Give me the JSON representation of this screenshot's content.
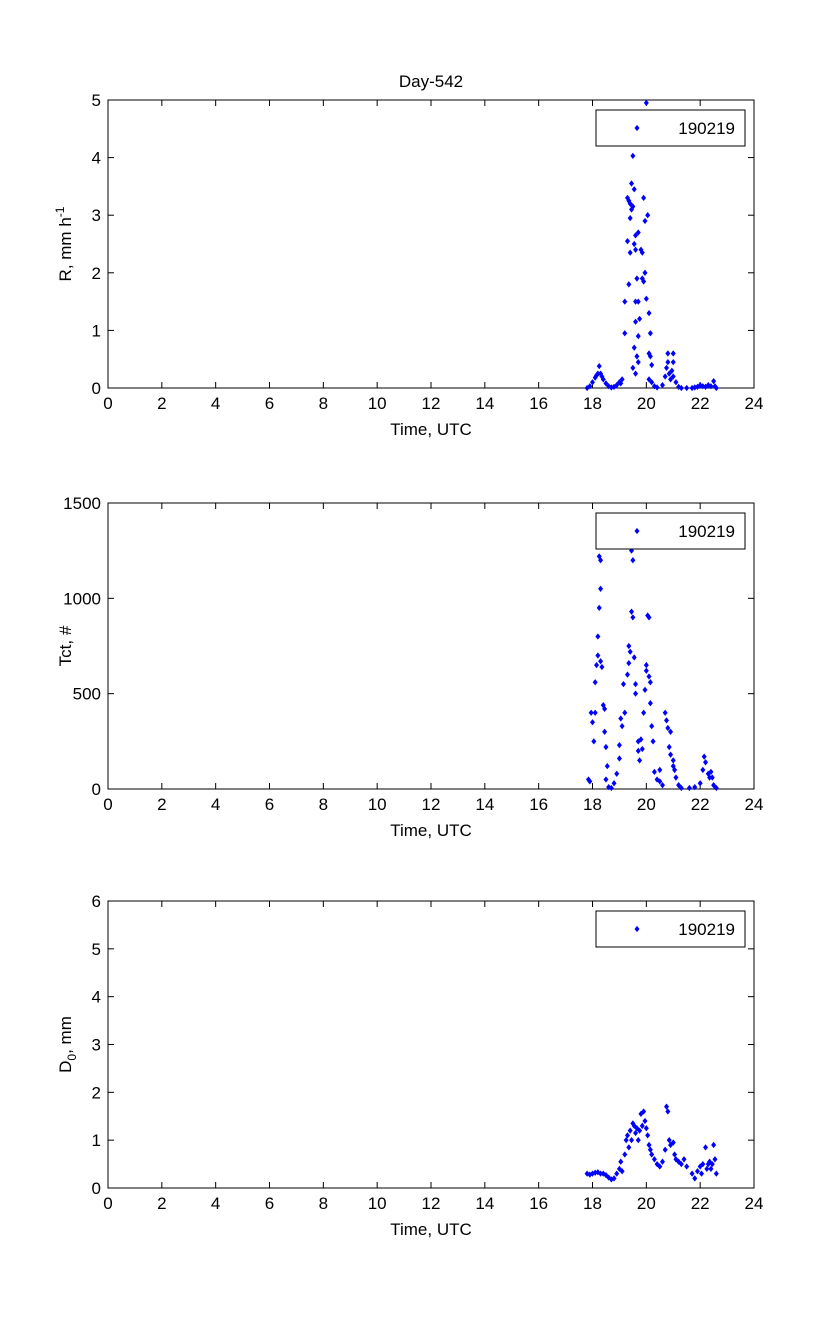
{
  "figure_title": "Day-542",
  "marker_color": "#0000ff",
  "chart_data": [
    {
      "type": "scatter",
      "title": "Day-542",
      "xlabel": "Time, UTC",
      "ylabel": {
        "base": "R, mm h",
        "sup": "-1",
        "sub": "",
        "rest": ""
      },
      "xlim": [
        0,
        24
      ],
      "ylim": [
        0,
        5
      ],
      "xticks": [
        0,
        2,
        4,
        6,
        8,
        10,
        12,
        14,
        16,
        18,
        20,
        22,
        24
      ],
      "yticks": [
        0,
        1,
        2,
        3,
        4,
        5
      ],
      "legend": {
        "label": "190219",
        "placement": "top-right"
      },
      "grid": false,
      "points": [
        [
          17.8,
          0
        ],
        [
          17.9,
          0.03
        ],
        [
          18.0,
          0.1
        ],
        [
          18.1,
          0.18
        ],
        [
          18.15,
          0.22
        ],
        [
          18.2,
          0.25
        ],
        [
          18.25,
          0.38
        ],
        [
          18.3,
          0.25
        ],
        [
          18.35,
          0.2
        ],
        [
          18.4,
          0.15
        ],
        [
          18.5,
          0.08
        ],
        [
          18.6,
          0.03
        ],
        [
          18.7,
          0.01
        ],
        [
          18.8,
          0.02
        ],
        [
          18.9,
          0.05
        ],
        [
          19.0,
          0.1
        ],
        [
          19.05,
          0.08
        ],
        [
          19.1,
          0.15
        ],
        [
          19.2,
          1.5
        ],
        [
          19.2,
          0.95
        ],
        [
          19.3,
          3.3
        ],
        [
          19.35,
          3.25
        ],
        [
          19.3,
          2.55
        ],
        [
          19.4,
          3.2
        ],
        [
          19.45,
          3.1
        ],
        [
          19.5,
          4.03
        ],
        [
          19.45,
          3.55
        ],
        [
          19.55,
          3.45
        ],
        [
          19.6,
          2.4
        ],
        [
          19.55,
          2.5
        ],
        [
          19.4,
          2.35
        ],
        [
          19.35,
          1.8
        ],
        [
          19.4,
          2.95
        ],
        [
          19.5,
          3.15
        ],
        [
          19.6,
          2.65
        ],
        [
          19.7,
          2.7
        ],
        [
          19.65,
          1.9
        ],
        [
          19.6,
          1.5
        ],
        [
          19.7,
          1.5
        ],
        [
          19.75,
          1.2
        ],
        [
          19.6,
          1.15
        ],
        [
          19.7,
          0.9
        ],
        [
          19.65,
          0.55
        ],
        [
          19.7,
          0.45
        ],
        [
          19.55,
          0.7
        ],
        [
          19.5,
          0.35
        ],
        [
          19.6,
          0.25
        ],
        [
          19.8,
          2.4
        ],
        [
          19.85,
          2.35
        ],
        [
          19.9,
          3.3
        ],
        [
          19.95,
          2.9
        ],
        [
          19.85,
          1.9
        ],
        [
          19.9,
          1.85
        ],
        [
          19.95,
          2.0
        ],
        [
          20.0,
          1.55
        ],
        [
          20.05,
          3.0
        ],
        [
          20.1,
          1.3
        ],
        [
          20.15,
          0.95
        ],
        [
          20.0,
          4.95
        ],
        [
          20.1,
          0.6
        ],
        [
          20.15,
          0.55
        ],
        [
          20.2,
          0.4
        ],
        [
          20.1,
          0.15
        ],
        [
          20.2,
          0.1
        ],
        [
          20.3,
          0.03
        ],
        [
          20.4,
          0.01
        ],
        [
          20.6,
          0.05
        ],
        [
          20.7,
          0.2
        ],
        [
          20.75,
          0.35
        ],
        [
          20.8,
          0.45
        ],
        [
          20.8,
          0.6
        ],
        [
          20.85,
          0.25
        ],
        [
          20.9,
          0.15
        ],
        [
          21.0,
          0.45
        ],
        [
          21.0,
          0.6
        ],
        [
          20.95,
          0.3
        ],
        [
          21.0,
          0.2
        ],
        [
          21.1,
          0.1
        ],
        [
          21.2,
          0.02
        ],
        [
          21.3,
          0.0
        ],
        [
          21.5,
          0
        ],
        [
          21.7,
          0
        ],
        [
          21.8,
          0.01
        ],
        [
          21.9,
          0.02
        ],
        [
          22.0,
          0.05
        ],
        [
          22.1,
          0.03
        ],
        [
          22.2,
          0.02
        ],
        [
          22.3,
          0.05
        ],
        [
          22.4,
          0.03
        ],
        [
          22.5,
          0.12
        ],
        [
          22.55,
          0.03
        ],
        [
          22.6,
          0
        ]
      ]
    },
    {
      "type": "scatter",
      "xlabel": "Time, UTC",
      "ylabel": {
        "base": "Tct, #",
        "sup": "",
        "sub": "",
        "rest": ""
      },
      "xlim": [
        0,
        24
      ],
      "ylim": [
        0,
        1500
      ],
      "xticks": [
        0,
        2,
        4,
        6,
        8,
        10,
        12,
        14,
        16,
        18,
        20,
        22,
        24
      ],
      "yticks": [
        0,
        500,
        1000,
        1500
      ],
      "legend": {
        "label": "190219",
        "placement": "top-right"
      },
      "grid": false,
      "points": [
        [
          17.85,
          50
        ],
        [
          17.9,
          40
        ],
        [
          17.95,
          400
        ],
        [
          18.0,
          350
        ],
        [
          18.05,
          250
        ],
        [
          18.1,
          400
        ],
        [
          18.1,
          560
        ],
        [
          18.15,
          650
        ],
        [
          18.2,
          700
        ],
        [
          18.2,
          800
        ],
        [
          18.25,
          950
        ],
        [
          18.3,
          1050
        ],
        [
          18.25,
          1220
        ],
        [
          18.3,
          1200
        ],
        [
          18.3,
          670
        ],
        [
          18.35,
          640
        ],
        [
          18.4,
          440
        ],
        [
          18.45,
          420
        ],
        [
          18.45,
          300
        ],
        [
          18.5,
          220
        ],
        [
          18.55,
          120
        ],
        [
          18.5,
          50
        ],
        [
          18.6,
          10
        ],
        [
          18.7,
          5
        ],
        [
          18.8,
          30
        ],
        [
          18.9,
          80
        ],
        [
          19.0,
          160
        ],
        [
          19.0,
          230
        ],
        [
          19.05,
          370
        ],
        [
          19.1,
          330
        ],
        [
          19.2,
          400
        ],
        [
          19.15,
          550
        ],
        [
          19.3,
          600
        ],
        [
          19.35,
          750
        ],
        [
          19.35,
          660
        ],
        [
          19.4,
          720
        ],
        [
          19.45,
          930
        ],
        [
          19.5,
          900
        ],
        [
          19.5,
          1200
        ],
        [
          19.45,
          1250
        ],
        [
          19.55,
          690
        ],
        [
          19.6,
          550
        ],
        [
          19.6,
          500
        ],
        [
          19.7,
          200
        ],
        [
          19.75,
          150
        ],
        [
          19.7,
          250
        ],
        [
          19.8,
          260
        ],
        [
          19.85,
          210
        ],
        [
          19.9,
          400
        ],
        [
          19.95,
          520
        ],
        [
          20.0,
          650
        ],
        [
          20.0,
          620
        ],
        [
          20.05,
          910
        ],
        [
          20.1,
          900
        ],
        [
          20.1,
          590
        ],
        [
          20.15,
          560
        ],
        [
          20.15,
          450
        ],
        [
          20.2,
          330
        ],
        [
          20.25,
          250
        ],
        [
          20.3,
          90
        ],
        [
          20.4,
          50
        ],
        [
          20.5,
          40
        ],
        [
          20.5,
          100
        ],
        [
          20.6,
          20
        ],
        [
          20.7,
          400
        ],
        [
          20.75,
          360
        ],
        [
          20.8,
          320
        ],
        [
          20.85,
          220
        ],
        [
          20.9,
          300
        ],
        [
          20.9,
          180
        ],
        [
          21.0,
          120
        ],
        [
          21.0,
          150
        ],
        [
          21.05,
          100
        ],
        [
          21.1,
          60
        ],
        [
          21.2,
          20
        ],
        [
          21.3,
          5
        ],
        [
          21.6,
          5
        ],
        [
          21.8,
          10
        ],
        [
          22.0,
          30
        ],
        [
          22.1,
          100
        ],
        [
          22.15,
          170
        ],
        [
          22.2,
          140
        ],
        [
          22.3,
          80
        ],
        [
          22.35,
          60
        ],
        [
          22.4,
          90
        ],
        [
          22.45,
          60
        ],
        [
          22.5,
          20
        ],
        [
          22.6,
          5
        ]
      ]
    },
    {
      "type": "scatter",
      "xlabel": "Time, UTC",
      "ylabel": {
        "base": "D",
        "sup": "",
        "sub": "0",
        "rest": ", mm"
      },
      "xlim": [
        0,
        24
      ],
      "ylim": [
        0,
        6
      ],
      "xticks": [
        0,
        2,
        4,
        6,
        8,
        10,
        12,
        14,
        16,
        18,
        20,
        22,
        24
      ],
      "yticks": [
        0,
        1,
        2,
        3,
        4,
        5,
        6
      ],
      "legend": {
        "label": "190219",
        "placement": "top-right"
      },
      "grid": false,
      "points": [
        [
          17.8,
          0.3
        ],
        [
          17.9,
          0.28
        ],
        [
          18.0,
          0.3
        ],
        [
          18.1,
          0.32
        ],
        [
          18.2,
          0.33
        ],
        [
          18.3,
          0.3
        ],
        [
          18.4,
          0.3
        ],
        [
          18.5,
          0.27
        ],
        [
          18.6,
          0.22
        ],
        [
          18.7,
          0.18
        ],
        [
          18.8,
          0.2
        ],
        [
          18.9,
          0.3
        ],
        [
          19.0,
          0.4
        ],
        [
          19.05,
          0.55
        ],
        [
          19.1,
          0.35
        ],
        [
          19.2,
          0.7
        ],
        [
          19.25,
          1.0
        ],
        [
          19.3,
          1.1
        ],
        [
          19.35,
          0.85
        ],
        [
          19.4,
          1.2
        ],
        [
          19.45,
          1.0
        ],
        [
          19.5,
          1.35
        ],
        [
          19.55,
          1.3
        ],
        [
          19.6,
          1.15
        ],
        [
          19.65,
          1.25
        ],
        [
          19.7,
          1.0
        ],
        [
          19.75,
          1.2
        ],
        [
          19.8,
          1.55
        ],
        [
          19.85,
          1.3
        ],
        [
          19.9,
          1.6
        ],
        [
          19.95,
          1.4
        ],
        [
          20.0,
          1.25
        ],
        [
          20.05,
          1.1
        ],
        [
          20.1,
          0.9
        ],
        [
          20.15,
          0.8
        ],
        [
          20.2,
          0.7
        ],
        [
          20.3,
          0.6
        ],
        [
          20.4,
          0.5
        ],
        [
          20.5,
          0.45
        ],
        [
          20.6,
          0.55
        ],
        [
          20.7,
          0.8
        ],
        [
          20.75,
          1.7
        ],
        [
          20.8,
          1.6
        ],
        [
          20.85,
          1.0
        ],
        [
          20.9,
          0.9
        ],
        [
          21.0,
          0.95
        ],
        [
          21.05,
          0.7
        ],
        [
          21.1,
          0.6
        ],
        [
          21.2,
          0.55
        ],
        [
          21.3,
          0.5
        ],
        [
          21.4,
          0.6
        ],
        [
          21.5,
          0.45
        ],
        [
          21.7,
          0.3
        ],
        [
          21.8,
          0.2
        ],
        [
          21.9,
          0.35
        ],
        [
          22.0,
          0.45
        ],
        [
          22.05,
          0.3
        ],
        [
          22.1,
          0.5
        ],
        [
          22.2,
          0.85
        ],
        [
          22.25,
          0.4
        ],
        [
          22.3,
          0.5
        ],
        [
          22.35,
          0.55
        ],
        [
          22.4,
          0.4
        ],
        [
          22.45,
          0.5
        ],
        [
          22.5,
          0.9
        ],
        [
          22.55,
          0.6
        ],
        [
          22.6,
          0.3
        ]
      ]
    }
  ]
}
